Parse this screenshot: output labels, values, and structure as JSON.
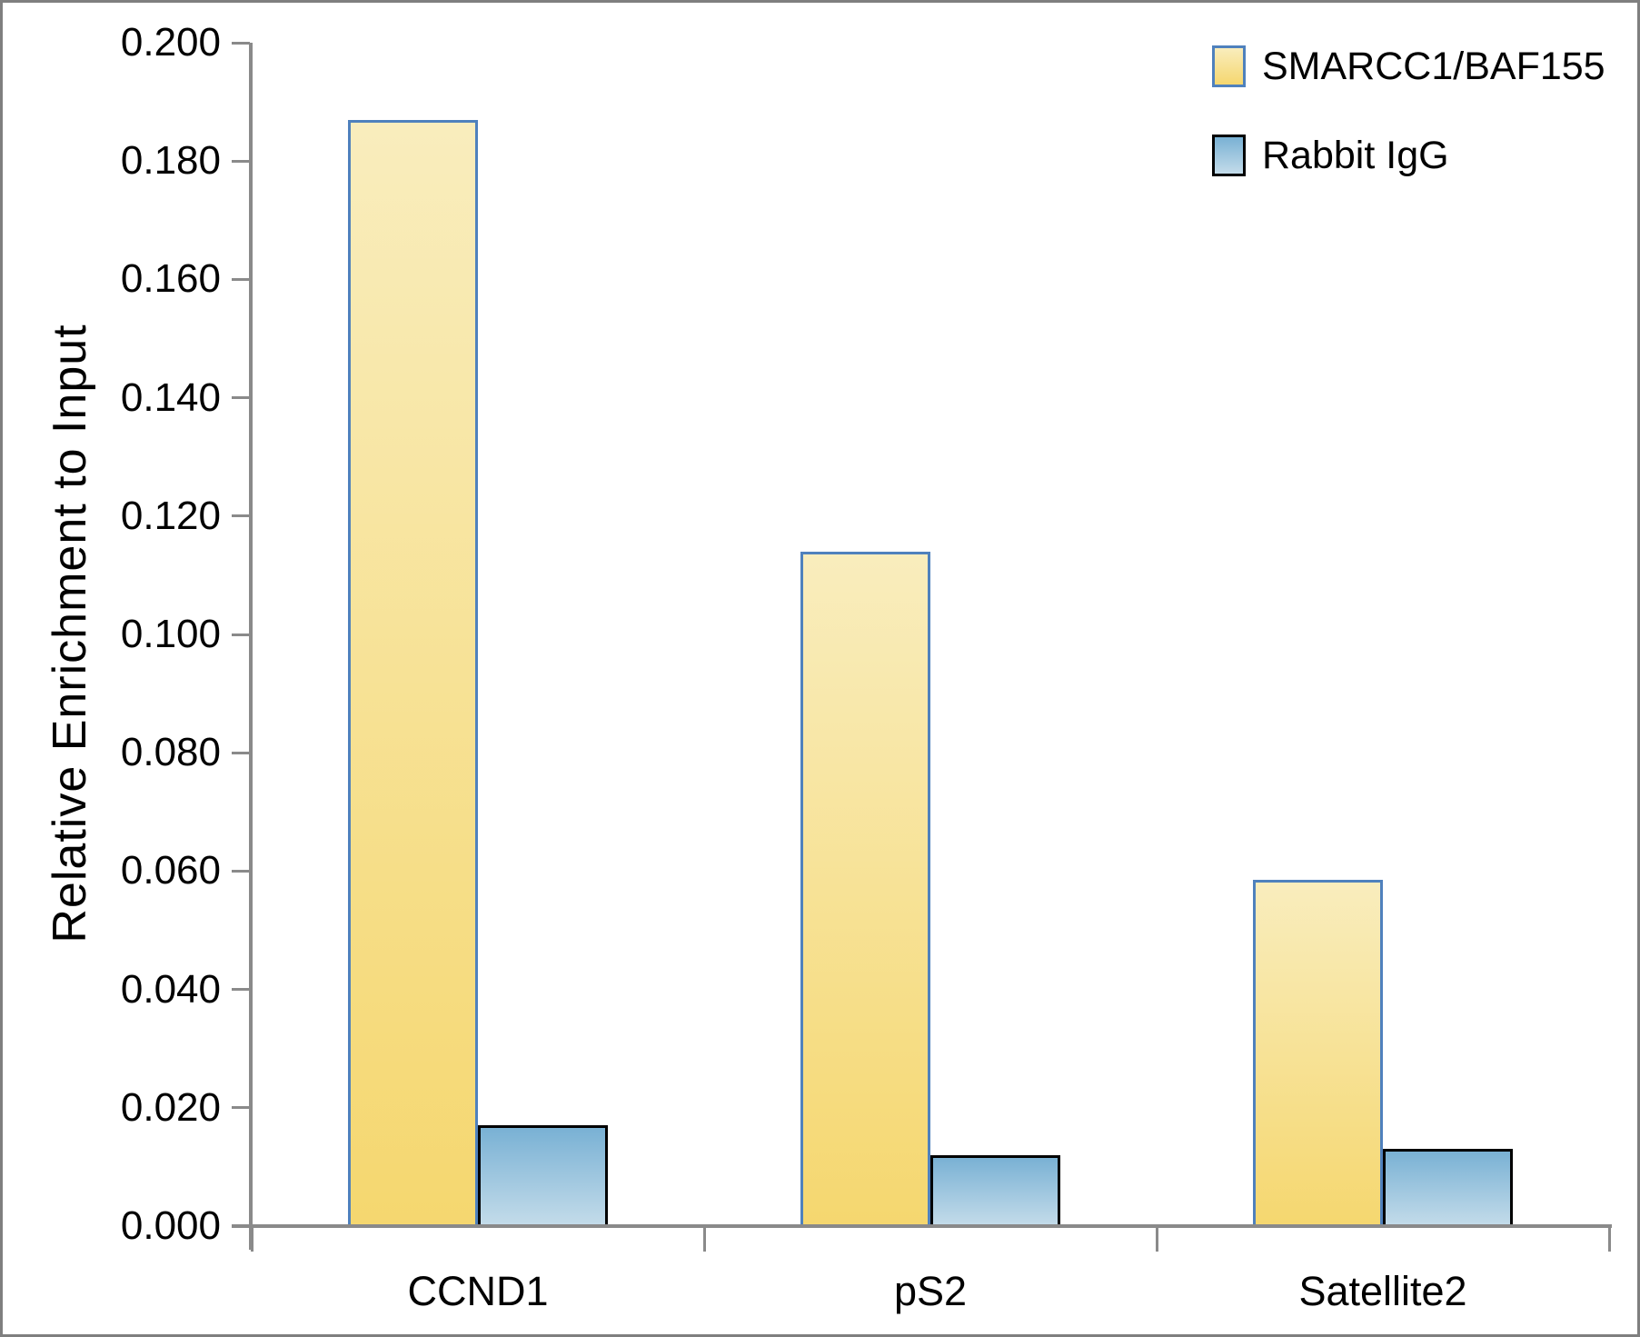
{
  "chart_data": {
    "type": "bar",
    "title": "",
    "ylabel": "Relative Enrichment to Input",
    "xlabel": "",
    "categories": [
      "CCND1",
      "pS2",
      "Satellite2"
    ],
    "series": [
      {
        "name": "SMARCC1/BAF155",
        "values": [
          0.187,
          0.114,
          0.0585
        ],
        "fill_top": "#f9edbd",
        "fill_bottom": "#f5d76f",
        "border_color": "#4f81bd"
      },
      {
        "name": "Rabbit IgG",
        "values": [
          0.017,
          0.012,
          0.013
        ],
        "fill_top": "#79b1d4",
        "fill_bottom": "#c4dcea",
        "border_color": "#000000"
      }
    ],
    "ylim": [
      0,
      0.2
    ],
    "ytick_step": 0.02,
    "ytick_labels_top_down": [
      "0.200",
      "0.180",
      "0.160",
      "0.140",
      "0.120",
      "0.100",
      "0.080",
      "0.060",
      "0.040",
      "0.020",
      "0.000"
    ],
    "grid": false,
    "legend_position": "top-right",
    "axis_color": "#8a8a8a",
    "text_color": "#000000",
    "figure_border_color": "#7f7f7f",
    "background_color": "#ffffff"
  }
}
